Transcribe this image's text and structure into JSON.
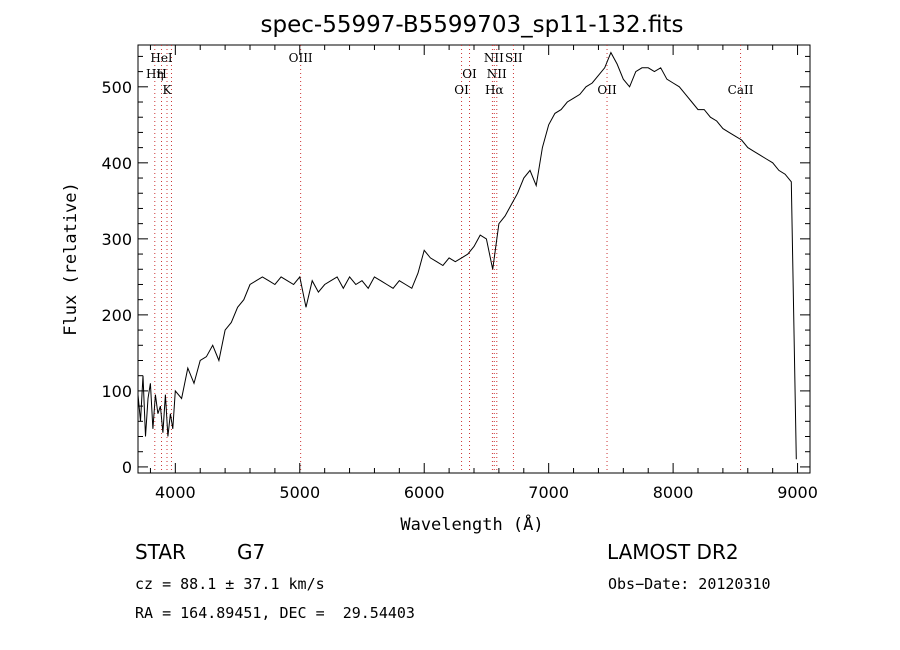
{
  "chart_data": {
    "type": "line",
    "title": "spec-55997-B5599703_sp11-132.fits",
    "xlabel": "Wavelength (Å)",
    "ylabel": "Flux (relative)",
    "xlim": [
      3700,
      9100
    ],
    "ylim": [
      -8,
      555
    ],
    "xticks": [
      4000,
      5000,
      6000,
      7000,
      8000,
      9000
    ],
    "yticks": [
      0,
      100,
      200,
      300,
      400,
      500
    ],
    "grid": false,
    "series": [
      {
        "x": [
          3700,
          3720,
          3740,
          3760,
          3780,
          3800,
          3820,
          3840,
          3860,
          3880,
          3900,
          3920,
          3940,
          3960,
          3980,
          4000,
          4050,
          4100,
          4150,
          4200,
          4250,
          4300,
          4350,
          4400,
          4450,
          4500,
          4550,
          4600,
          4650,
          4700,
          4750,
          4800,
          4850,
          4900,
          4950,
          5000,
          5050,
          5100,
          5150,
          5200,
          5250,
          5300,
          5350,
          5400,
          5450,
          5500,
          5550,
          5600,
          5650,
          5700,
          5750,
          5800,
          5850,
          5900,
          5950,
          6000,
          6050,
          6100,
          6150,
          6200,
          6250,
          6300,
          6350,
          6400,
          6450,
          6500,
          6550,
          6600,
          6650,
          6700,
          6750,
          6800,
          6850,
          6900,
          6950,
          7000,
          7050,
          7100,
          7150,
          7200,
          7250,
          7300,
          7350,
          7400,
          7450,
          7500,
          7550,
          7600,
          7650,
          7700,
          7750,
          7800,
          7850,
          7900,
          7950,
          8000,
          8050,
          8100,
          8150,
          8200,
          8250,
          8300,
          8350,
          8400,
          8450,
          8500,
          8550,
          8600,
          8650,
          8700,
          8750,
          8800,
          8850,
          8900,
          8950,
          8990
        ],
        "y": [
          95,
          60,
          120,
          40,
          90,
          110,
          50,
          95,
          70,
          80,
          45,
          95,
          40,
          70,
          50,
          100,
          90,
          130,
          110,
          140,
          145,
          160,
          140,
          180,
          190,
          210,
          220,
          240,
          245,
          250,
          245,
          240,
          250,
          245,
          240,
          250,
          210,
          245,
          230,
          240,
          245,
          250,
          235,
          250,
          240,
          245,
          235,
          250,
          245,
          240,
          235,
          245,
          240,
          235,
          255,
          285,
          275,
          270,
          265,
          275,
          270,
          275,
          280,
          290,
          305,
          300,
          260,
          320,
          330,
          345,
          360,
          380,
          390,
          370,
          420,
          450,
          465,
          470,
          480,
          485,
          490,
          500,
          505,
          515,
          525,
          545,
          530,
          510,
          500,
          520,
          525,
          525,
          520,
          525,
          510,
          505,
          500,
          490,
          480,
          470,
          470,
          460,
          455,
          445,
          440,
          435,
          430,
          420,
          415,
          410,
          405,
          400,
          390,
          385,
          375,
          10
        ]
      }
    ],
    "annotations": [
      "HeI",
      "Hη",
      "H",
      "K",
      "OIII",
      "OI",
      "OI",
      "NII",
      "SII",
      "NII",
      "Hα",
      "OII",
      "CaII"
    ]
  },
  "info": {
    "class_label": "STAR",
    "subclass": "G7",
    "survey": "LAMOST DR2",
    "cz": "cz = 88.1 ± 37.1 km/s",
    "obs_date": "Obs−Date: 20120310",
    "radec": "RA = 164.89451, DEC =  29.54403"
  }
}
